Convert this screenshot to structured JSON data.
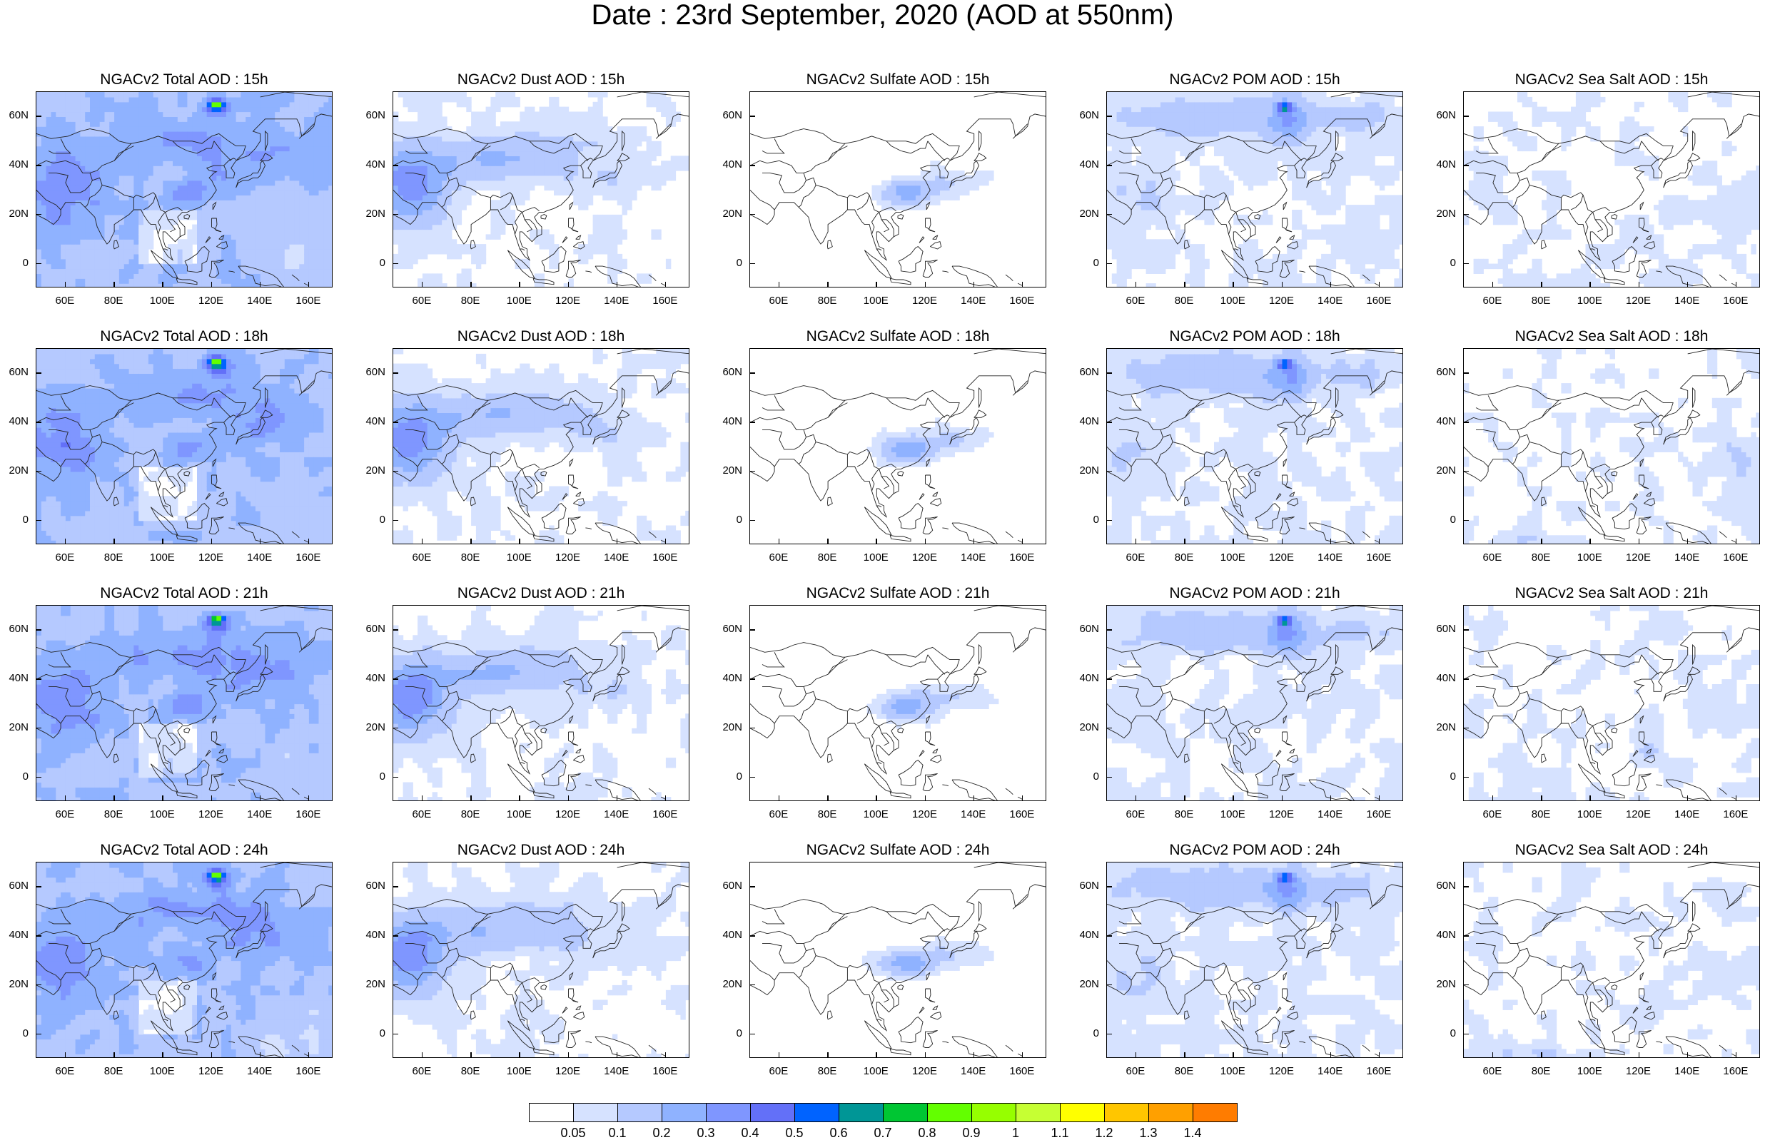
{
  "title": "Date : 23rd  September, 2020 (AOD at 550nm)",
  "icons": {
    "map": "coastline-map"
  },
  "panels": [
    {
      "title": "NGACv2 Total AOD : 15h",
      "species": "total",
      "hour": "15h"
    },
    {
      "title": "NGACv2 Dust AOD : 15h",
      "species": "dust",
      "hour": "15h"
    },
    {
      "title": "NGACv2 Sulfate AOD : 15h",
      "species": "sulfate",
      "hour": "15h"
    },
    {
      "title": "NGACv2 POM AOD : 15h",
      "species": "pom",
      "hour": "15h"
    },
    {
      "title": "NGACv2 Sea Salt AOD : 15h",
      "species": "seasalt",
      "hour": "15h"
    },
    {
      "title": "NGACv2 Total AOD : 18h",
      "species": "total",
      "hour": "18h"
    },
    {
      "title": "NGACv2 Dust AOD : 18h",
      "species": "dust",
      "hour": "18h"
    },
    {
      "title": "NGACv2 Sulfate AOD : 18h",
      "species": "sulfate",
      "hour": "18h"
    },
    {
      "title": "NGACv2 POM AOD : 18h",
      "species": "pom",
      "hour": "18h"
    },
    {
      "title": "NGACv2 Sea Salt AOD : 18h",
      "species": "seasalt",
      "hour": "18h"
    },
    {
      "title": "NGACv2 Total AOD : 21h",
      "species": "total",
      "hour": "21h"
    },
    {
      "title": "NGACv2 Dust AOD : 21h",
      "species": "dust",
      "hour": "21h"
    },
    {
      "title": "NGACv2 Sulfate AOD : 21h",
      "species": "sulfate",
      "hour": "21h"
    },
    {
      "title": "NGACv2 POM AOD : 21h",
      "species": "pom",
      "hour": "21h"
    },
    {
      "title": "NGACv2 Sea Salt AOD : 21h",
      "species": "seasalt",
      "hour": "21h"
    },
    {
      "title": "NGACv2 Total AOD : 24h",
      "species": "total",
      "hour": "24h"
    },
    {
      "title": "NGACv2 Dust AOD : 24h",
      "species": "dust",
      "hour": "24h"
    },
    {
      "title": "NGACv2 Sulfate AOD : 24h",
      "species": "sulfate",
      "hour": "24h"
    },
    {
      "title": "NGACv2 POM AOD : 24h",
      "species": "pom",
      "hour": "24h"
    },
    {
      "title": "NGACv2 Sea Salt  AOD : 24h",
      "species": "seasalt",
      "hour": "24h"
    }
  ],
  "axes": {
    "lon_range": [
      48,
      170
    ],
    "lat_range": [
      -10,
      70
    ],
    "x_ticks": [
      "60E",
      "80E",
      "100E",
      "120E",
      "140E",
      "160E"
    ],
    "x_tick_values": [
      60,
      80,
      100,
      120,
      140,
      160
    ],
    "y_ticks": [
      "60N",
      "40N",
      "20N",
      "0"
    ],
    "y_tick_values": [
      60,
      40,
      20,
      0
    ]
  },
  "colorbar": {
    "labels": [
      "0.05",
      "0.1",
      "0.2",
      "0.3",
      "0.4",
      "0.5",
      "0.6",
      "0.7",
      "0.8",
      "0.9",
      "1",
      "1.1",
      "1.2",
      "1.3",
      "1.4"
    ],
    "colors": [
      "#ffffff",
      "#d6e2ff",
      "#b5c9ff",
      "#8fb2ff",
      "#7f96ff",
      "#6370f8",
      "#0063ff",
      "#009696",
      "#00c633",
      "#63ff00",
      "#96ff00",
      "#c6ff33",
      "#ffff00",
      "#ffc600",
      "#ffa000",
      "#ff7c00",
      "#ff1900"
    ]
  }
}
